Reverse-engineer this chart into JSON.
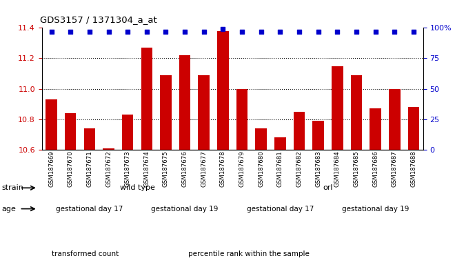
{
  "title": "GDS3157 / 1371304_a_at",
  "samples": [
    "GSM187669",
    "GSM187670",
    "GSM187671",
    "GSM187672",
    "GSM187673",
    "GSM187674",
    "GSM187675",
    "GSM187676",
    "GSM187677",
    "GSM187678",
    "GSM187679",
    "GSM187680",
    "GSM187681",
    "GSM187682",
    "GSM187683",
    "GSM187684",
    "GSM187685",
    "GSM187686",
    "GSM187687",
    "GSM187688"
  ],
  "values": [
    10.93,
    10.84,
    10.74,
    10.61,
    10.83,
    11.27,
    11.09,
    11.22,
    11.09,
    11.38,
    11.0,
    10.74,
    10.68,
    10.85,
    10.79,
    11.15,
    11.09,
    10.87,
    11.0,
    10.88
  ],
  "percentile_ranks": [
    97,
    97,
    97,
    97,
    97,
    97,
    97,
    97,
    97,
    99,
    97,
    97,
    97,
    97,
    97,
    97,
    97,
    97,
    97,
    97
  ],
  "bar_color": "#cc0000",
  "dot_color": "#0000cc",
  "ylim_left": [
    10.6,
    11.4
  ],
  "ylim_right": [
    0,
    100
  ],
  "yticks_left": [
    10.6,
    10.8,
    11.0,
    11.2,
    11.4
  ],
  "yticks_right": [
    0,
    25,
    50,
    75,
    100
  ],
  "hlines": [
    10.8,
    11.0,
    11.2
  ],
  "strain_groups": [
    {
      "label": "wild type",
      "start": 0,
      "end": 9,
      "color": "#99ee99"
    },
    {
      "label": "orl",
      "start": 10,
      "end": 19,
      "color": "#44cc44"
    }
  ],
  "age_groups": [
    {
      "label": "gestational day 17",
      "start": 0,
      "end": 4,
      "color": "#ee88ee"
    },
    {
      "label": "gestational day 19",
      "start": 5,
      "end": 9,
      "color": "#cc44cc"
    },
    {
      "label": "gestational day 17",
      "start": 10,
      "end": 14,
      "color": "#ee88ee"
    },
    {
      "label": "gestational day 19",
      "start": 15,
      "end": 19,
      "color": "#cc44cc"
    }
  ],
  "legend_items": [
    {
      "label": "transformed count",
      "color": "#cc0000"
    },
    {
      "label": "percentile rank within the sample",
      "color": "#0000cc"
    }
  ],
  "left_color": "#cc0000",
  "right_color": "#0000cc",
  "bg_color": "#ffffff",
  "xtick_bg": "#dddddd",
  "strain_label": "strain",
  "age_label": "age"
}
